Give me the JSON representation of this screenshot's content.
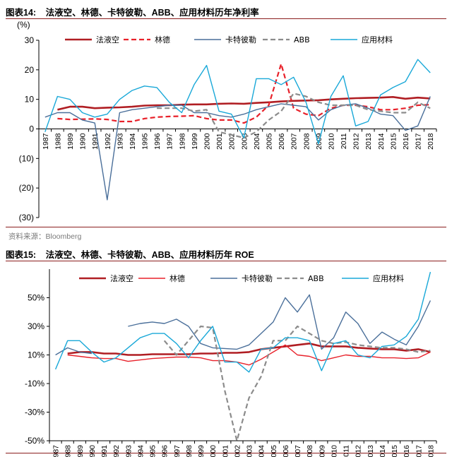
{
  "chart_data": [
    {
      "type": "line",
      "figure_label": "图表14:",
      "title": "法液空、林德、卡特彼勒、ABB、应用材料历年净利率",
      "unit_label": "(%)",
      "source": "资料来源：Bloomberg",
      "ylim": [
        -30,
        30
      ],
      "yticks": [
        30,
        20,
        10,
        0,
        -10,
        -20,
        -30
      ],
      "ytick_labels": [
        "30",
        "20",
        "10",
        "0",
        "(10)",
        "(20)",
        "(30)"
      ],
      "categories": [
        "1987",
        "1988",
        "1989",
        "1990",
        "1991",
        "1992",
        "1993",
        "1994",
        "1995",
        "1996",
        "1997",
        "1998",
        "1999",
        "2000",
        "2001",
        "2002",
        "2003",
        "2004",
        "2005",
        "2006",
        "2007",
        "2008",
        "2009",
        "2010",
        "2011",
        "2012",
        "2013",
        "2014",
        "2015",
        "2016",
        "2017",
        "2018"
      ],
      "series": [
        {
          "name": "法液空",
          "color": "#b01e23",
          "style": "solid-bold",
          "values": [
            null,
            6.5,
            7.5,
            7.5,
            7,
            7.2,
            7.3,
            7.5,
            7.9,
            8,
            8,
            8.2,
            8.3,
            8.3,
            8.5,
            8.6,
            8.5,
            8.8,
            9,
            9.3,
            9.5,
            9.6,
            9.7,
            10,
            10.2,
            10.4,
            10.5,
            10.6,
            10.8,
            10.2,
            10.6,
            10.3
          ]
        },
        {
          "name": "林德",
          "color": "#e8212a",
          "style": "dashed",
          "values": [
            null,
            3.5,
            3.2,
            3.3,
            3.4,
            3.2,
            2.5,
            2.5,
            3.5,
            4,
            4.2,
            4.3,
            4.5,
            3.5,
            3,
            3,
            2,
            4,
            8,
            22,
            7,
            5,
            4.5,
            7,
            8,
            8,
            7.5,
            6.5,
            6.5,
            7,
            8,
            8.2
          ]
        },
        {
          "name": "卡特彼勒",
          "color": "#4a6f9a",
          "style": "solid",
          "values": [
            4,
            5.5,
            5.5,
            3,
            2,
            -24,
            5.5,
            6.5,
            7,
            7.5,
            8,
            8,
            5.5,
            5.5,
            4.5,
            4,
            5,
            6.5,
            7.5,
            8.5,
            8,
            7.5,
            3,
            6.5,
            8,
            8.5,
            7,
            5,
            4.5,
            -0.5,
            1,
            11
          ]
        },
        {
          "name": "ABB",
          "color": "#8c8c8c",
          "style": "dashed",
          "values": [
            null,
            null,
            null,
            null,
            null,
            null,
            null,
            null,
            null,
            7,
            7,
            7,
            6,
            6.5,
            -1,
            -2,
            -3,
            -1,
            3,
            6,
            12,
            11,
            9,
            8,
            8,
            8,
            6.5,
            6,
            5.5,
            5.5,
            9,
            7
          ]
        },
        {
          "name": "应用材料",
          "color": "#19a8d8",
          "style": "solid",
          "values": [
            -1,
            11,
            10,
            5.5,
            4,
            5,
            10,
            13,
            14.5,
            14,
            9,
            5.5,
            15,
            21.5,
            6,
            5,
            -3,
            17,
            17,
            15,
            17.5,
            9,
            -5,
            11,
            18,
            1,
            2.5,
            11.5,
            14,
            16,
            23.5,
            19
          ]
        }
      ]
    },
    {
      "type": "line",
      "figure_label": "图表15:",
      "title": "法液空、林德、卡特彼勒、ABB、应用材料历年 ROE",
      "ylim": [
        -50,
        70
      ],
      "yticks": [
        50,
        30,
        10,
        -10,
        -30,
        -50
      ],
      "ytick_labels": [
        "50%",
        "30%",
        "10%",
        "-10%",
        "-30%",
        "-50%"
      ],
      "categories": [
        "1987",
        "1988",
        "1989",
        "1990",
        "1991",
        "1992",
        "1993",
        "1994",
        "1995",
        "1996",
        "1997",
        "1998",
        "1999",
        "2000",
        "2001",
        "2002",
        "2003",
        "2004",
        "2005",
        "2006",
        "2007",
        "2008",
        "2009",
        "2010",
        "2011",
        "2012",
        "2013",
        "2014",
        "2015",
        "2016",
        "2017",
        "2018"
      ],
      "series": [
        {
          "name": "法液空",
          "color": "#b01e23",
          "style": "solid-bold",
          "values": [
            null,
            11,
            12,
            12,
            11,
            11,
            10,
            10,
            10.5,
            10.5,
            10.5,
            10.5,
            11,
            11,
            11.5,
            11.5,
            12,
            14,
            15,
            16,
            17,
            18,
            16,
            16,
            16,
            15,
            14.5,
            14,
            14,
            13,
            14,
            12
          ]
        },
        {
          "name": "林德",
          "color": "#e8212a",
          "style": "solid",
          "values": [
            null,
            10,
            9,
            8,
            7.5,
            7.5,
            5.5,
            6.5,
            7.5,
            8,
            8.5,
            8.5,
            8,
            6,
            6,
            5,
            3,
            7,
            12,
            17,
            10,
            9,
            6,
            8,
            10,
            9,
            9,
            8,
            8,
            7.5,
            8,
            12
          ]
        },
        {
          "name": "卡特彼勒",
          "color": "#4a6f9a",
          "style": "solid",
          "values": [
            10,
            15,
            12,
            11,
            null,
            null,
            30,
            32,
            33,
            32,
            35,
            30,
            18,
            15,
            14.5,
            14,
            17,
            25,
            33,
            50,
            40,
            52,
            14,
            22,
            40,
            32,
            18,
            26,
            21,
            17,
            30,
            48
          ]
        },
        {
          "name": "ABB",
          "color": "#8c8c8c",
          "style": "dashed",
          "values": [
            null,
            null,
            null,
            null,
            null,
            null,
            null,
            null,
            null,
            20,
            10,
            20,
            30,
            29,
            -15,
            -50,
            -20,
            -5,
            20,
            20,
            30,
            25,
            20,
            18,
            19,
            17,
            16,
            15,
            15,
            14,
            12,
            13
          ]
        },
        {
          "name": "应用材料",
          "color": "#19a8d8",
          "style": "solid",
          "values": [
            0,
            20,
            20,
            12,
            5,
            8,
            15,
            22,
            25,
            25,
            18,
            8,
            20,
            30,
            5,
            5,
            -2,
            14,
            15,
            22,
            22,
            20,
            -1,
            18,
            20,
            10,
            8,
            16,
            17,
            23,
            35,
            68
          ]
        }
      ]
    }
  ]
}
